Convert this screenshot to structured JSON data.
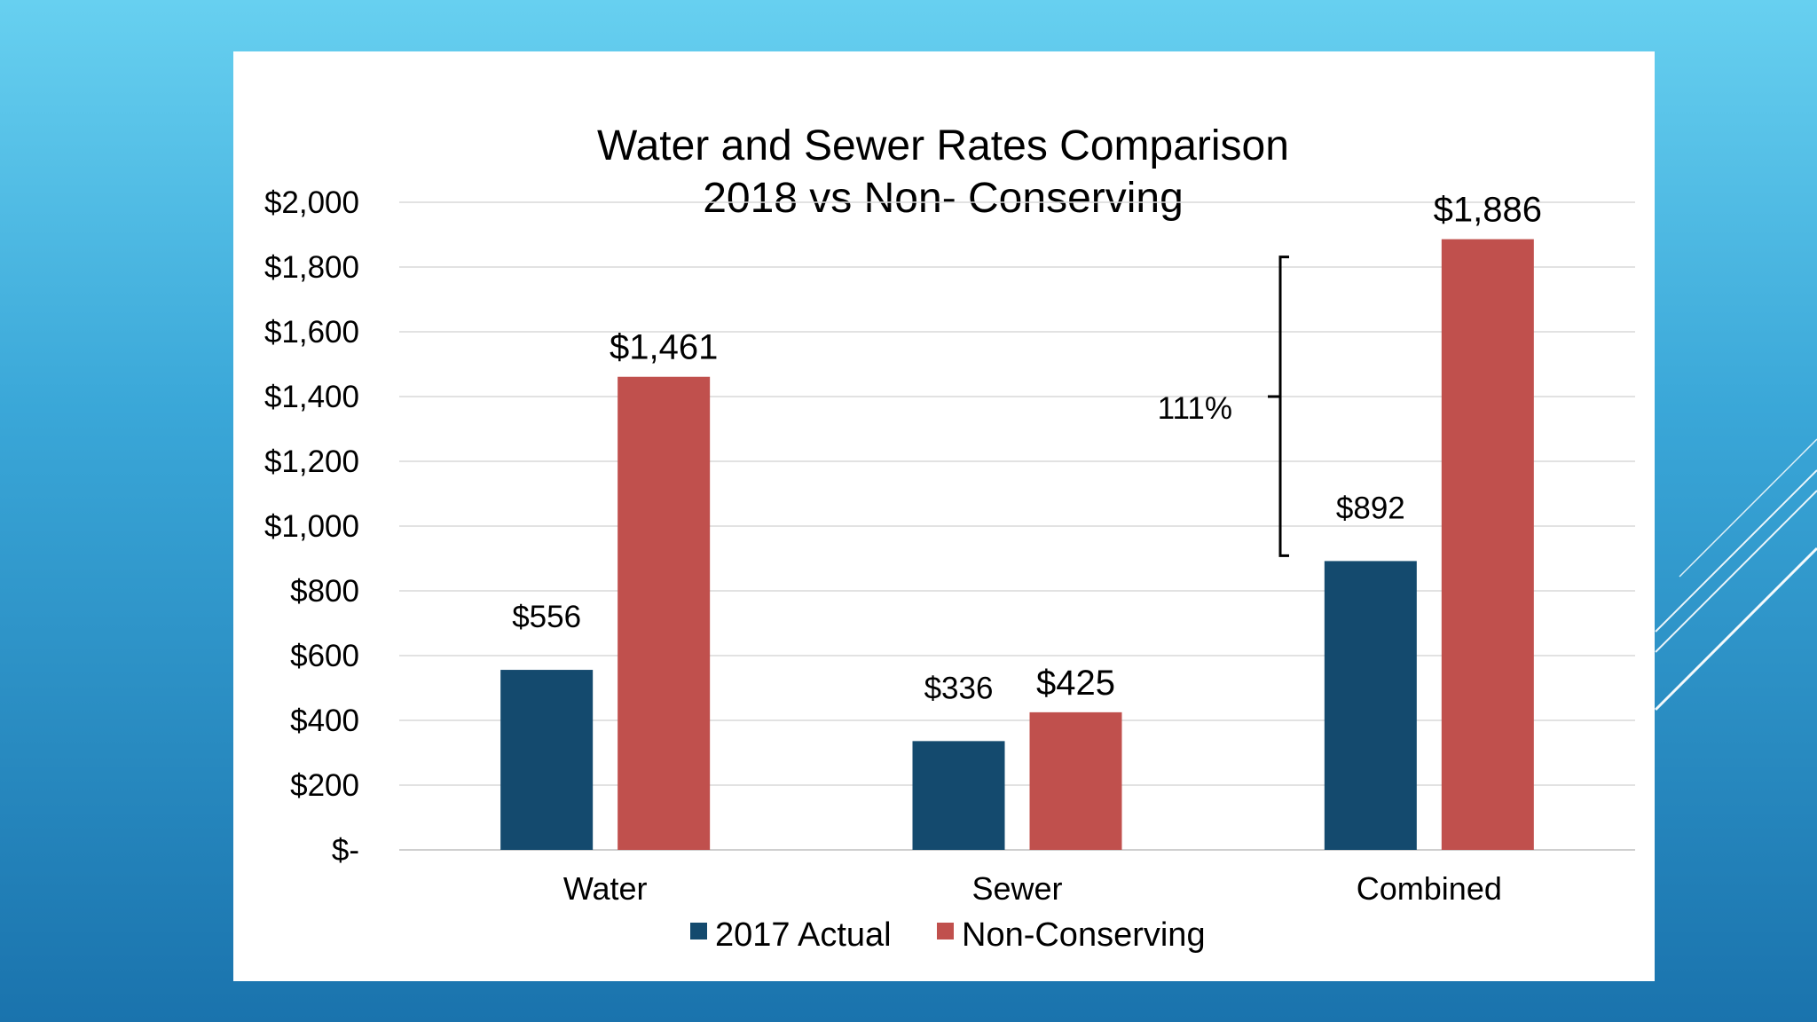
{
  "chart_data": {
    "type": "bar",
    "title": "Water and Sewer Rates Comparison",
    "subtitle": "2018 vs Non- Conserving",
    "categories": [
      "Water",
      "Sewer",
      "Combined"
    ],
    "series": [
      {
        "name": "2017 Actual",
        "color": "#144a6e",
        "values": [
          556,
          336,
          892
        ],
        "labels": [
          "$556",
          "$336",
          "$892"
        ]
      },
      {
        "name": "Non-Conserving",
        "color": "#c0504d",
        "values": [
          1461,
          425,
          1886
        ],
        "labels": [
          "$1,461",
          "$425",
          "$1,886"
        ]
      }
    ],
    "ylim": [
      0,
      2000
    ],
    "yticks": [
      0,
      200,
      400,
      600,
      800,
      1000,
      1200,
      1400,
      1600,
      1800,
      2000
    ],
    "ytick_labels": [
      "$-",
      "$200",
      "$400",
      "$600",
      "$800",
      "$1,000",
      "$1,200",
      "$1,400",
      "$1,600",
      "$1,800",
      "$2,000"
    ],
    "grid": true,
    "legend": "bottom",
    "annotation": {
      "text": "111%",
      "category": "Combined",
      "from_value": 892,
      "to_value": 1886
    }
  }
}
